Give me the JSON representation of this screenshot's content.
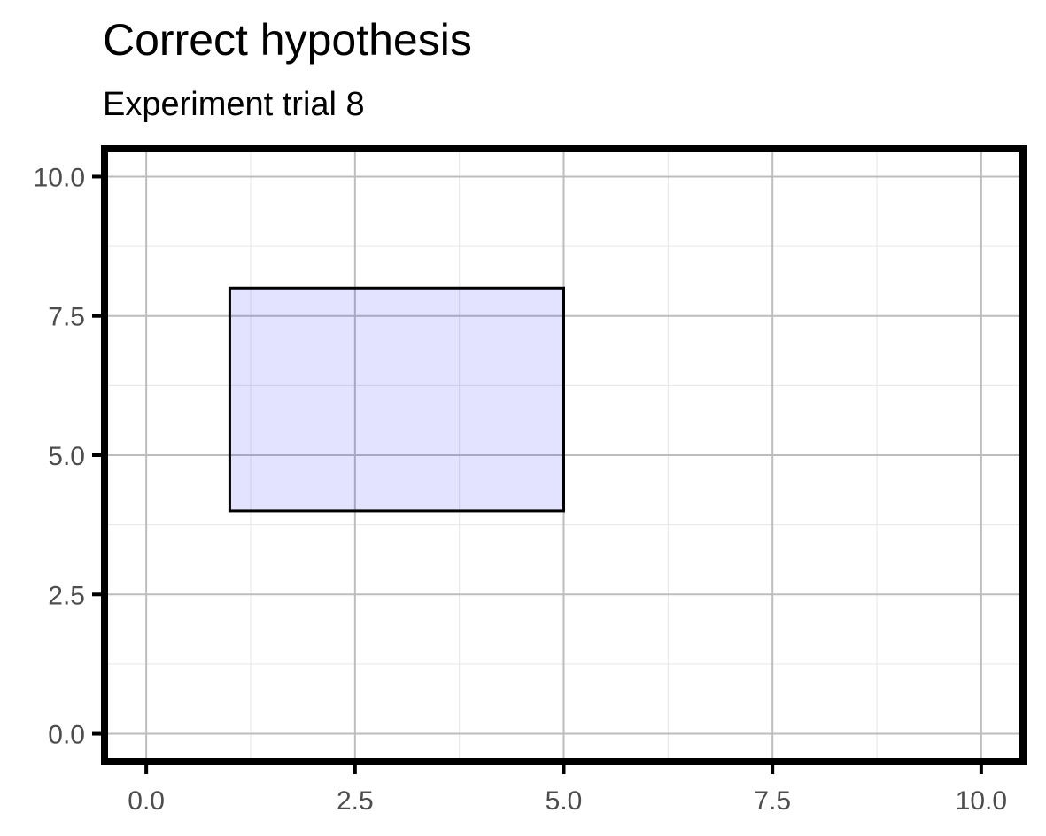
{
  "chart_data": {
    "type": "rect",
    "title": "Correct hypothesis",
    "subtitle": "Experiment trial 8",
    "xlabel": "",
    "ylabel": "",
    "xlim": [
      -0.5,
      10.5
    ],
    "ylim": [
      -0.5,
      10.5
    ],
    "x_ticks": [
      0.0,
      2.5,
      5.0,
      7.5,
      10.0
    ],
    "y_ticks": [
      0.0,
      2.5,
      5.0,
      7.5,
      10.0
    ],
    "x_tick_labels": [
      "0.0",
      "2.5",
      "5.0",
      "7.5",
      "10.0"
    ],
    "y_tick_labels": [
      "0.0",
      "2.5",
      "5.0",
      "7.5",
      "10.0"
    ],
    "grid": true,
    "rectangles": [
      {
        "xmin": 1.0,
        "xmax": 5.0,
        "ymin": 4.0,
        "ymax": 8.0
      }
    ],
    "colors": {
      "rect_fill": "#e3e3fe",
      "rect_stroke": "#000000",
      "panel_border": "#000000",
      "grid_major": "#bdbdbd",
      "grid_minor": "#e6e6e6"
    }
  }
}
